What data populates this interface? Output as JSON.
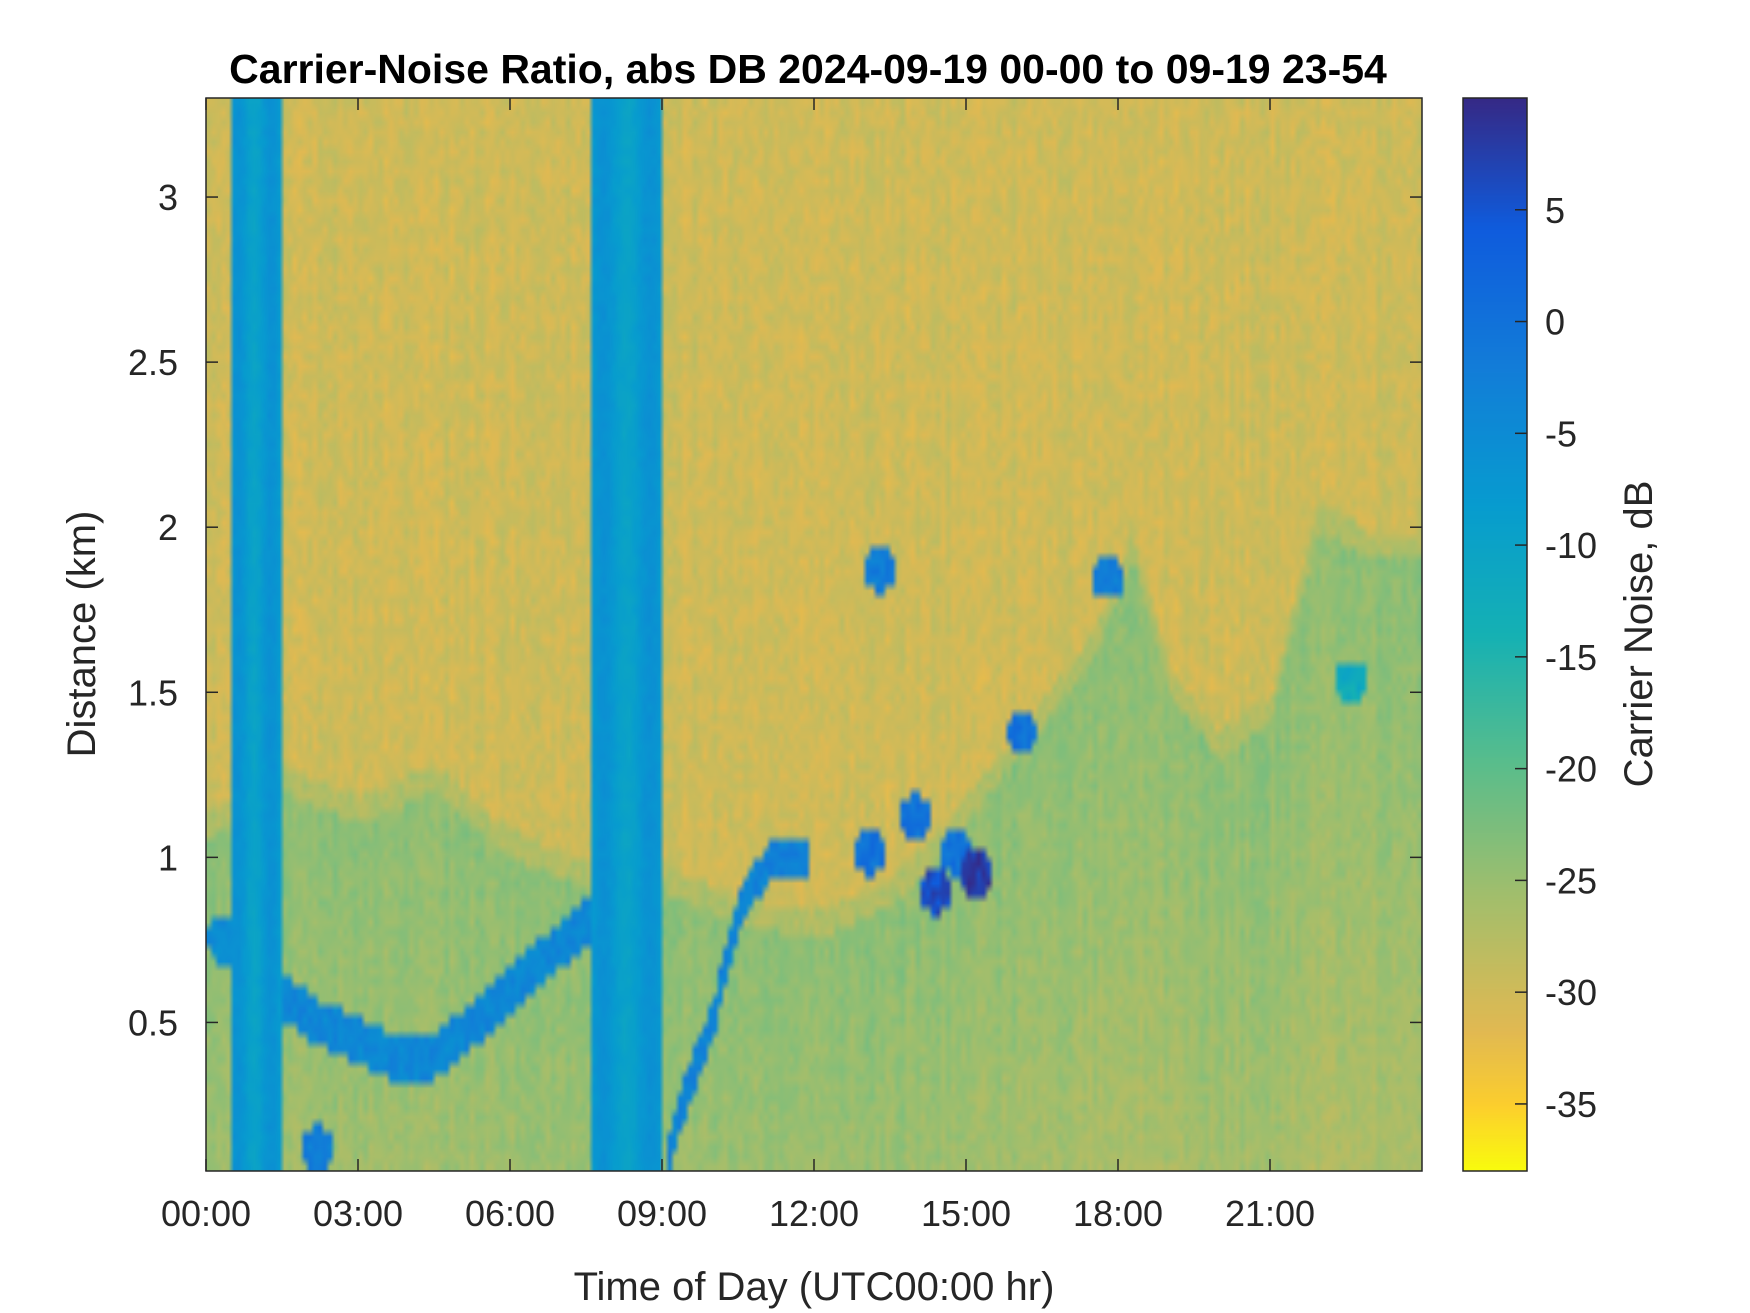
{
  "chart_data": {
    "type": "heatmap",
    "title": "Carrier-Noise Ratio, abs DB 2024-09-19 00-00 to 09-19 23-54",
    "xlabel": "Time of Day (UTC00:00 hr)",
    "ylabel": "Distance (km)",
    "x_ticks": [
      0,
      3,
      6,
      9,
      12,
      15,
      18,
      21
    ],
    "x_tick_labels": [
      "00:00",
      "03:00",
      "06:00",
      "09:00",
      "12:00",
      "15:00",
      "18:00",
      "21:00"
    ],
    "y_ticks": [
      0.5,
      1,
      1.5,
      2,
      2.5,
      3
    ],
    "y_tick_labels": [
      "0.5",
      "1",
      "1.5",
      "2",
      "2.5",
      "3"
    ],
    "xlim": [
      0,
      24
    ],
    "ylim": [
      0.05,
      3.3
    ],
    "colorbar": {
      "label": "Carrier Noise, dB",
      "range": [
        -38,
        10
      ],
      "ticks": [
        5,
        0,
        -5,
        -10,
        -15,
        -20,
        -25,
        -30,
        -35
      ],
      "tick_labels": [
        "5",
        "0",
        "-5",
        "-10",
        "-15",
        "-20",
        "-25",
        "-30",
        "-35"
      ],
      "colormap": "parula"
    },
    "features": {
      "background_db": -30,
      "boundary_layer_db": -24,
      "instrument_gaps": [
        {
          "x_start": 0.45,
          "x_end": 1.45,
          "db": -8
        },
        {
          "x_start": 7.6,
          "x_end": 9.0,
          "db": -8
        }
      ],
      "aerosol_layer_top": [
        {
          "x": 0.0,
          "y": 1.05
        },
        {
          "x": 1.5,
          "y": 1.2
        },
        {
          "x": 3.0,
          "y": 1.1
        },
        {
          "x": 4.5,
          "y": 1.2
        },
        {
          "x": 6.0,
          "y": 1.0
        },
        {
          "x": 7.6,
          "y": 0.9
        },
        {
          "x": 9.0,
          "y": 0.9
        },
        {
          "x": 10.5,
          "y": 0.8
        },
        {
          "x": 12.0,
          "y": 0.75
        },
        {
          "x": 13.5,
          "y": 0.85
        },
        {
          "x": 14.5,
          "y": 1.0
        },
        {
          "x": 15.5,
          "y": 1.2
        },
        {
          "x": 16.5,
          "y": 1.4
        },
        {
          "x": 17.5,
          "y": 1.6
        },
        {
          "x": 18.3,
          "y": 1.9
        },
        {
          "x": 19.0,
          "y": 1.5
        },
        {
          "x": 20.0,
          "y": 1.3
        },
        {
          "x": 21.0,
          "y": 1.4
        },
        {
          "x": 22.0,
          "y": 2.0
        },
        {
          "x": 23.0,
          "y": 1.9
        },
        {
          "x": 24.0,
          "y": 1.9
        }
      ],
      "strong_return_band": [
        {
          "x": 1.5,
          "y": 0.58
        },
        {
          "x": 2.2,
          "y": 0.5
        },
        {
          "x": 3.0,
          "y": 0.45
        },
        {
          "x": 3.8,
          "y": 0.38
        },
        {
          "x": 4.5,
          "y": 0.4
        },
        {
          "x": 5.5,
          "y": 0.52
        },
        {
          "x": 6.5,
          "y": 0.67
        },
        {
          "x": 7.5,
          "y": 0.8
        }
      ],
      "morning_rising_band": [
        {
          "x": 9.1,
          "y": 0.08
        },
        {
          "x": 9.5,
          "y": 0.3
        },
        {
          "x": 10.0,
          "y": 0.5
        },
        {
          "x": 10.3,
          "y": 0.7
        },
        {
          "x": 10.6,
          "y": 0.88
        },
        {
          "x": 11.2,
          "y": 1.0
        },
        {
          "x": 11.8,
          "y": 1.0
        }
      ],
      "cloud_patches": [
        {
          "x": 13.1,
          "y": 1.02,
          "db": 0
        },
        {
          "x": 14.0,
          "y": 1.12,
          "db": 0
        },
        {
          "x": 14.8,
          "y": 1.02,
          "db": 0
        },
        {
          "x": 15.2,
          "y": 0.95,
          "db": 8
        },
        {
          "x": 14.4,
          "y": 0.9,
          "db": 6
        },
        {
          "x": 16.1,
          "y": 1.38,
          "db": 0
        },
        {
          "x": 13.3,
          "y": 1.87,
          "db": -2
        },
        {
          "x": 17.8,
          "y": 1.85,
          "db": -2
        },
        {
          "x": 22.6,
          "y": 1.53,
          "db": -12
        },
        {
          "x": 0.35,
          "y": 0.75,
          "db": -5
        },
        {
          "x": 2.2,
          "y": 0.12,
          "db": -2
        }
      ]
    }
  }
}
